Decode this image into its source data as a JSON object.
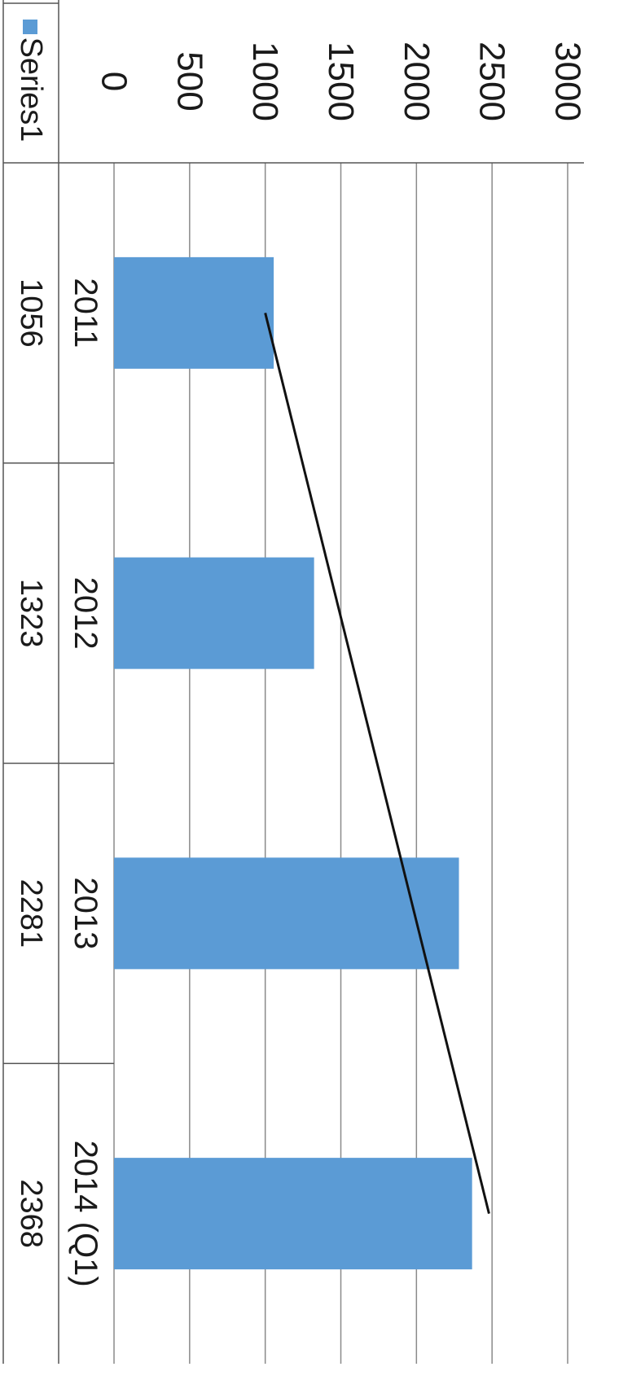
{
  "chart_data": {
    "type": "bar",
    "orientation": "rotated-90-clockwise",
    "categories": [
      "2011",
      "2012",
      "2013",
      "2014 (Q1)"
    ],
    "series": [
      {
        "name": "Series1",
        "values": [
          1056,
          1323,
          2281,
          2368
        ],
        "color": "#5b9bd5"
      }
    ],
    "yticks": [
      "0",
      "500",
      "1000",
      "1500",
      "2000",
      "2500",
      "3000"
    ],
    "ylim": [
      0,
      3000
    ],
    "grid": true,
    "legend": "data-table-row",
    "data_table": true,
    "trend_line": {
      "from": {
        "category": "2011",
        "value": 1000
      },
      "to": {
        "category": "2014 (Q1)",
        "value": 2480
      },
      "color": "#111111"
    }
  }
}
